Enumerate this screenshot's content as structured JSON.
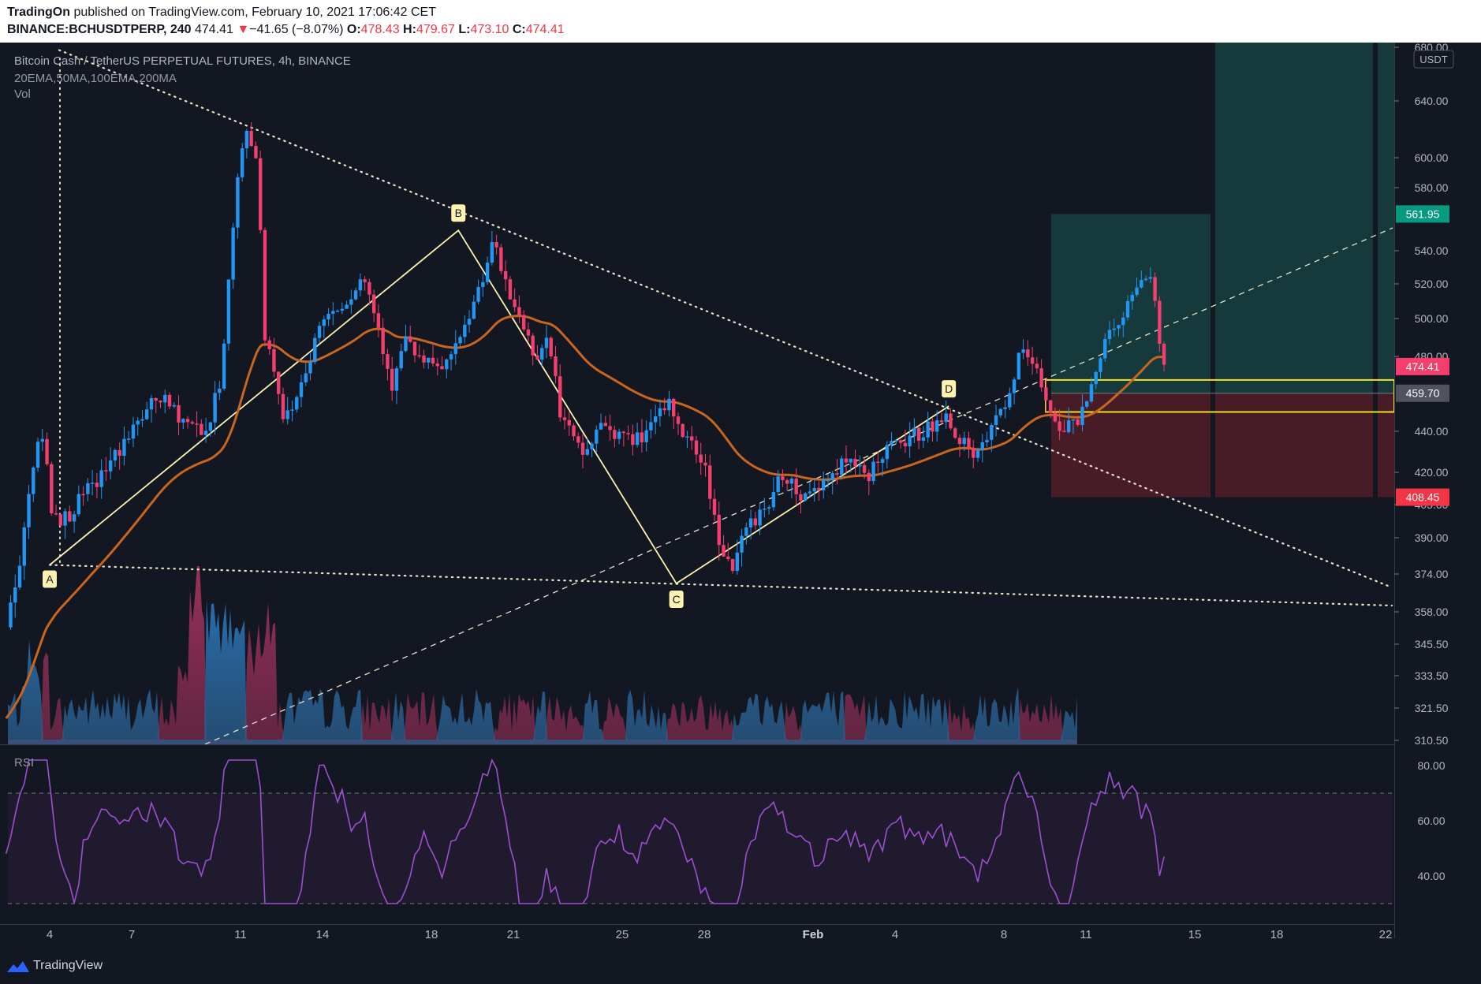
{
  "header": {
    "author": "TradingOn",
    "published_text": "published on TradingView.com, February 10, 2021 17:06:42 CET",
    "symbol": "BINANCE:BCHUSDTPERP, 240",
    "last": "474.41",
    "change_arrow": "▼",
    "change": "−41.65 (−8.07%)",
    "o_label": "O:",
    "o": "478.43",
    "h_label": "H:",
    "h": "479.67",
    "l_label": "L:",
    "l": "473.10",
    "c_label": "C:",
    "c": "474.41"
  },
  "legend": {
    "title": "Bitcoin Cash / TetherUS PERPETUAL FUTURES, 4h, BINANCE",
    "indicators": "20EMA,50MA,100EMA,200MA",
    "vol": "Vol",
    "rsi": "RSI"
  },
  "footer": {
    "brand": "TradingView"
  },
  "colors": {
    "background": "#131722",
    "up": "#2196f3",
    "down": "#f23f6d",
    "ema": "#c8651e",
    "rsi": "#9c4fd0",
    "pattern": "#fff3b0",
    "target": "#26a69a",
    "stop": "#ef5350"
  },
  "chart_data": {
    "type": "candlestick",
    "currency": "USDT",
    "x_ticks": [
      "4",
      "7",
      "11",
      "14",
      "18",
      "21",
      "25",
      "28",
      "Feb",
      "4",
      "8",
      "11",
      "15",
      "18",
      "22"
    ],
    "y_ticks": [
      "680.00",
      "640.00",
      "600.00",
      "580.00",
      "540.00",
      "520.00",
      "500.00",
      "480.00",
      "440.00",
      "420.00",
      "405.00",
      "390.00",
      "374.00",
      "358.00",
      "345.50",
      "333.50",
      "321.50",
      "310.50"
    ],
    "price_labels": [
      {
        "value": "561.95",
        "kind": "target"
      },
      {
        "value": "474.41",
        "kind": "last"
      },
      {
        "value": "459.70",
        "kind": "entry"
      },
      {
        "value": "408.45",
        "kind": "stop"
      }
    ],
    "pattern_points": [
      {
        "label": "A",
        "date": "Jan 4",
        "price": 378
      },
      {
        "label": "B",
        "date": "Jan 19",
        "price": 552
      },
      {
        "label": "C",
        "date": "Jan 27",
        "price": 370
      },
      {
        "label": "D",
        "date": "Feb 5",
        "price": 453
      }
    ],
    "key_prices": {
      "wedge_upper_start": 678,
      "swing_high": 628,
      "last": 474.41,
      "target": 561.95,
      "entry": 459.7,
      "stop": 408.45,
      "zone_top": 467,
      "zone_bottom": 450
    },
    "rsi_ticks": [
      "80.00",
      "60.00",
      "40.00"
    ],
    "rsi_levels": [
      70,
      30
    ],
    "rsi_last": 47
  }
}
